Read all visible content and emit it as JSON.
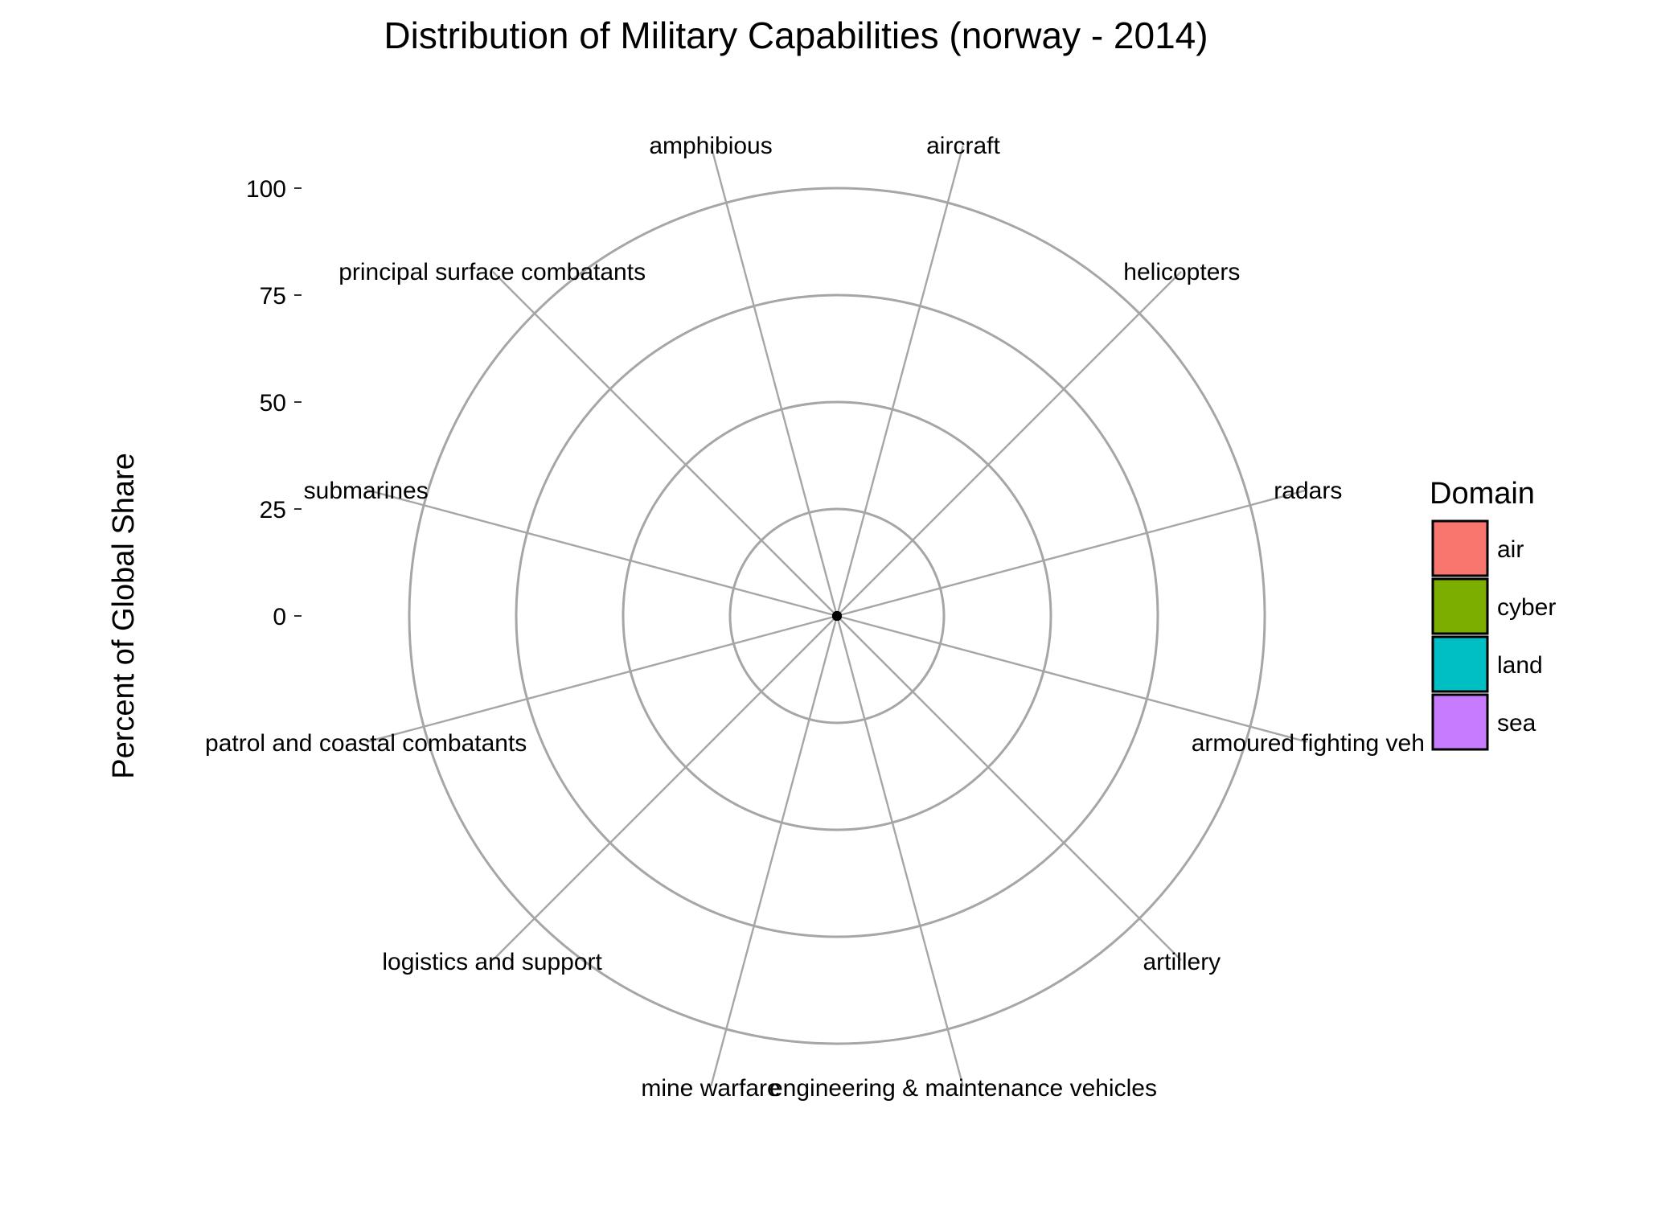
{
  "chart_data": {
    "type": "radar",
    "title": "Distribution of Military Capabilities (norway - 2014)",
    "ylabel": "Percent of Global Share",
    "ylim": [
      0,
      100
    ],
    "yticks": [
      0,
      25,
      50,
      75,
      100
    ],
    "ytick_labels": [
      "0",
      "25",
      "50",
      "75",
      "100"
    ],
    "grid": true,
    "categories": [
      "aircraft",
      "helicopters",
      "radars",
      "armoured fighting veh",
      "artillery",
      "engineering & maintenance vehicles",
      "mine warfare",
      "logistics and support",
      "patrol and coastal combatants",
      "submarines",
      "principal surface combatants",
      "amphibious"
    ],
    "values": [
      0,
      0,
      0,
      0,
      0,
      0,
      0,
      0,
      0,
      0,
      0,
      0
    ],
    "legend": {
      "title": "Domain",
      "position": "right",
      "items": [
        {
          "label": "air",
          "color": "#F8766D"
        },
        {
          "label": "cyber",
          "color": "#7CAE00"
        },
        {
          "label": "land",
          "color": "#00BFC4"
        },
        {
          "label": "sea",
          "color": "#C77CFF"
        }
      ]
    },
    "colors": {
      "grid": "#a6a6a6",
      "point": "#000000"
    }
  }
}
